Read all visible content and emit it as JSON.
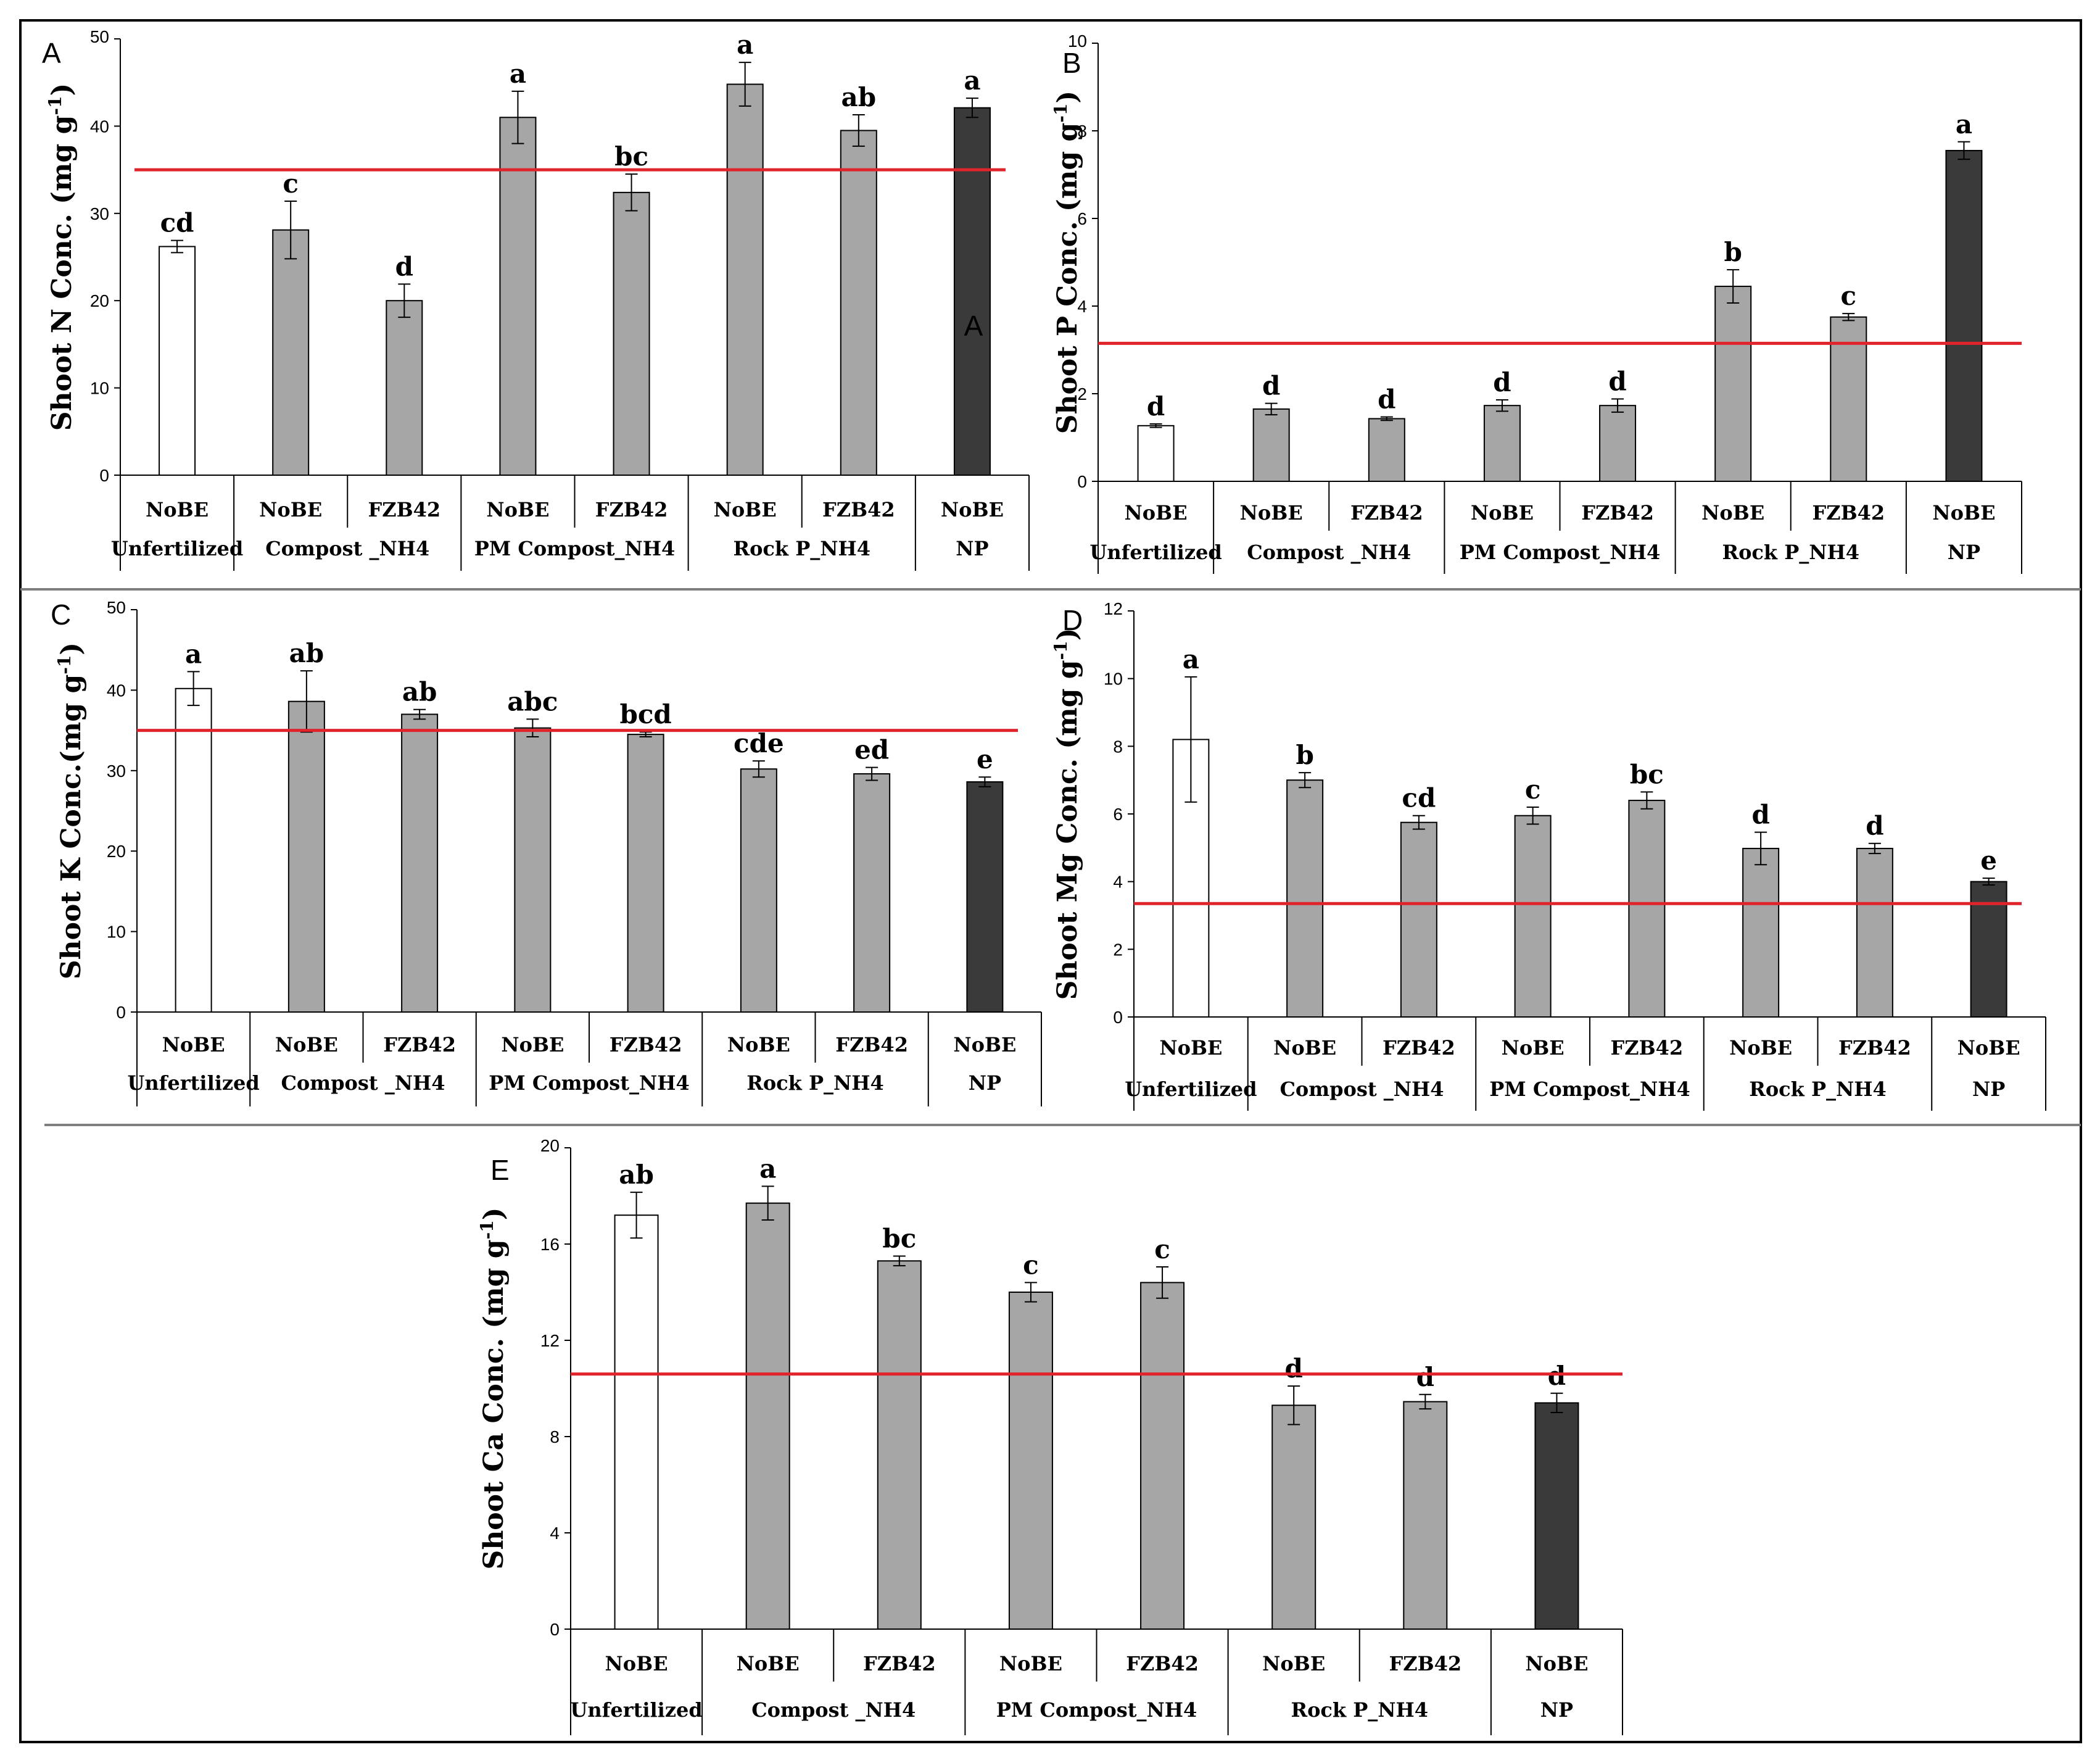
{
  "colors": {
    "unfertilized": "#ffffff",
    "treatment": "#a6a6a6",
    "np": "#3a3a3a",
    "reference_line": "#e0242c",
    "axis": "#000000"
  },
  "chart_data": [
    {
      "panel": "A",
      "type": "bar",
      "ylabel": "Shoot N Conc. (mg g",
      "ylabel_sup": "-1",
      "ylabel_close": ")",
      "ylim": [
        0,
        50
      ],
      "yticks": [
        0,
        10,
        20,
        30,
        40,
        50
      ],
      "reference_line": 35,
      "categories": [
        "NoBE",
        "NoBE",
        "FZB42",
        "NoBE",
        "FZB42",
        "NoBE",
        "FZB42",
        "NoBE"
      ],
      "values": [
        26.2,
        28.1,
        20.0,
        41.0,
        32.4,
        44.8,
        39.5,
        42.1
      ],
      "errors": [
        0.7,
        3.3,
        1.9,
        3.0,
        2.1,
        2.5,
        1.8,
        1.1
      ],
      "significance": [
        "cd",
        "c",
        "d",
        "a",
        "bc",
        "a",
        "ab",
        "a"
      ],
      "stray_label": "A",
      "groups": [
        {
          "label": "Unfertilized",
          "span": 1
        },
        {
          "label": "Compost _NH4",
          "span": 2
        },
        {
          "label": "PM Compost_NH4",
          "span": 2
        },
        {
          "label": "Rock P_NH4",
          "span": 2
        },
        {
          "label": "NP",
          "span": 1
        }
      ]
    },
    {
      "panel": "B",
      "type": "bar",
      "ylabel": "Shoot P Conc. (mg g",
      "ylabel_sup": "-1",
      "ylabel_close": ")",
      "ylim": [
        0,
        10
      ],
      "yticks": [
        0,
        2,
        4,
        6,
        8,
        10
      ],
      "reference_line": 3.15,
      "categories": [
        "NoBE",
        "NoBE",
        "FZB42",
        "NoBE",
        "FZB42",
        "NoBE",
        "FZB42",
        "NoBE"
      ],
      "values": [
        1.27,
        1.65,
        1.43,
        1.73,
        1.73,
        4.45,
        3.75,
        7.55
      ],
      "errors": [
        0.04,
        0.13,
        0.04,
        0.13,
        0.15,
        0.38,
        0.08,
        0.2
      ],
      "significance": [
        "d",
        "d",
        "d",
        "d",
        "d",
        "b",
        "c",
        "a"
      ],
      "groups": [
        {
          "label": "Unfertilized",
          "span": 1
        },
        {
          "label": "Compost _NH4",
          "span": 2
        },
        {
          "label": "PM Compost_NH4",
          "span": 2
        },
        {
          "label": "Rock P_NH4",
          "span": 2
        },
        {
          "label": "NP",
          "span": 1
        }
      ]
    },
    {
      "panel": "C",
      "type": "bar",
      "ylabel": "Shoot  K Conc.(mg g",
      "ylabel_sup": "-1",
      "ylabel_close": ")",
      "ylim": [
        0,
        50
      ],
      "yticks": [
        0,
        10,
        20,
        30,
        40,
        50
      ],
      "reference_line": 35,
      "categories": [
        "NoBE",
        "NoBE",
        "FZB42",
        "NoBE",
        "FZB42",
        "NoBE",
        "FZB42",
        "NoBE"
      ],
      "values": [
        40.2,
        38.6,
        37.0,
        35.3,
        34.5,
        30.2,
        29.6,
        28.6
      ],
      "errors": [
        2.1,
        3.8,
        0.6,
        1.1,
        0.3,
        1.0,
        0.8,
        0.6
      ],
      "significance": [
        "a",
        "ab",
        "ab",
        "abc",
        "bcd",
        "cde",
        "ed",
        "e"
      ],
      "groups": [
        {
          "label": "Unfertilized",
          "span": 1
        },
        {
          "label": "Compost _NH4",
          "span": 2
        },
        {
          "label": "PM Compost_NH4",
          "span": 2
        },
        {
          "label": "Rock P_NH4",
          "span": 2
        },
        {
          "label": "NP",
          "span": 1
        }
      ]
    },
    {
      "panel": "D",
      "type": "bar",
      "ylabel": "Shoot  Mg Conc. (mg g",
      "ylabel_sup": "-1",
      "ylabel_close": ")",
      "ylim": [
        0,
        12
      ],
      "yticks": [
        0,
        2,
        4,
        6,
        8,
        10,
        12
      ],
      "reference_line": 3.35,
      "categories": [
        "NoBE",
        "NoBE",
        "FZB42",
        "NoBE",
        "FZB42",
        "NoBE",
        "FZB42",
        "NoBE"
      ],
      "values": [
        8.2,
        7.0,
        5.75,
        5.95,
        6.4,
        4.98,
        4.98,
        4.0
      ],
      "errors": [
        1.85,
        0.22,
        0.2,
        0.25,
        0.25,
        0.48,
        0.15,
        0.1
      ],
      "significance": [
        "a",
        "b",
        "cd",
        "c",
        "bc",
        "d",
        "d",
        "e"
      ],
      "groups": [
        {
          "label": "Unfertilized",
          "span": 1
        },
        {
          "label": "Compost _NH4",
          "span": 2
        },
        {
          "label": "PM Compost_NH4",
          "span": 2
        },
        {
          "label": "Rock P_NH4",
          "span": 2
        },
        {
          "label": "NP",
          "span": 1
        }
      ]
    },
    {
      "panel": "E",
      "type": "bar",
      "ylabel": "Shoot Ca Conc. (mg g",
      "ylabel_sup": "-1",
      "ylabel_close": ")",
      "ylim": [
        0,
        20
      ],
      "yticks": [
        0,
        4,
        8,
        12,
        16,
        20
      ],
      "reference_line": 10.6,
      "categories": [
        "NoBE",
        "NoBE",
        "FZB42",
        "NoBE",
        "FZB42",
        "NoBE",
        "FZB42",
        "NoBE"
      ],
      "values": [
        17.2,
        17.7,
        15.3,
        14.0,
        14.4,
        9.3,
        9.45,
        9.4
      ],
      "errors": [
        0.95,
        0.7,
        0.2,
        0.4,
        0.65,
        0.8,
        0.3,
        0.4
      ],
      "significance": [
        "ab",
        "a",
        "bc",
        "c",
        "c",
        "d",
        "d",
        "d"
      ],
      "groups": [
        {
          "label": "Unfertilized",
          "span": 1
        },
        {
          "label": "Compost _NH4",
          "span": 2
        },
        {
          "label": "PM Compost_NH4",
          "span": 2
        },
        {
          "label": "Rock P_NH4",
          "span": 2
        },
        {
          "label": "NP",
          "span": 1
        }
      ]
    }
  ]
}
